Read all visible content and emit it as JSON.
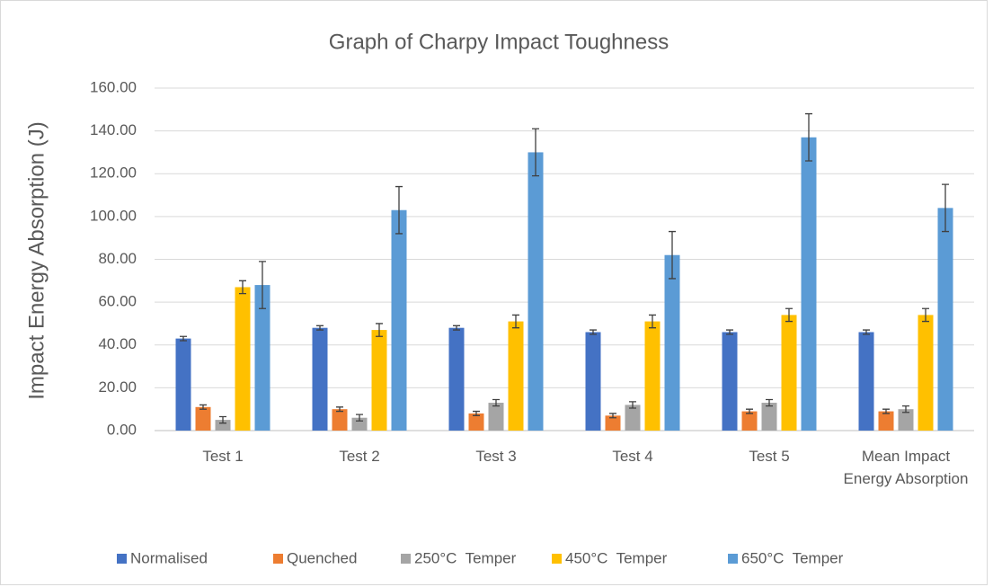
{
  "chart_data": {
    "type": "bar",
    "title": "Graph of Charpy Impact Toughness",
    "y_label": "Impact Energy Absorption (J)",
    "categories": [
      "Test 1",
      "Test 2",
      "Test 3",
      "Test 4",
      "Test 5",
      "Mean Impact Energy Absorption"
    ],
    "series": [
      {
        "name": "Normalised",
        "color": "#4472c4",
        "values": [
          43,
          48,
          48,
          46,
          46,
          46
        ],
        "errors": [
          1,
          1,
          1,
          1,
          1,
          1
        ]
      },
      {
        "name": "Quenched",
        "color": "#ed7d31",
        "values": [
          11,
          10,
          8,
          7,
          9,
          9
        ],
        "errors": [
          1,
          1,
          1,
          1,
          1,
          1
        ]
      },
      {
        "name": "250°C  Temper",
        "color": "#a5a5a5",
        "values": [
          5,
          6,
          13,
          12,
          13,
          10
        ],
        "errors": [
          1.5,
          1.5,
          1.5,
          1.5,
          1.5,
          1.5
        ]
      },
      {
        "name": "450°C  Temper",
        "color": "#ffc000",
        "values": [
          67,
          47,
          51,
          51,
          54,
          54
        ],
        "errors": [
          3,
          3,
          3,
          3,
          3,
          3
        ]
      },
      {
        "name": "650°C  Temper",
        "color": "#5b9bd5",
        "values": [
          68,
          103,
          130,
          82,
          137,
          104
        ],
        "errors": [
          11,
          11,
          11,
          11,
          11,
          11
        ]
      }
    ],
    "ylim": [
      0,
      160
    ],
    "yticks": [
      {
        "value": 0,
        "label": "0.00"
      },
      {
        "value": 20,
        "label": "20.00"
      },
      {
        "value": 40,
        "label": "40.00"
      },
      {
        "value": 60,
        "label": "60.00"
      },
      {
        "value": 80,
        "label": "80.00"
      },
      {
        "value": 100,
        "label": "100.00"
      },
      {
        "value": 120,
        "label": "120.00"
      },
      {
        "value": 140,
        "label": "140.00"
      },
      {
        "value": 160,
        "label": "160.00"
      }
    ],
    "grid": true,
    "legend": "bottom"
  }
}
